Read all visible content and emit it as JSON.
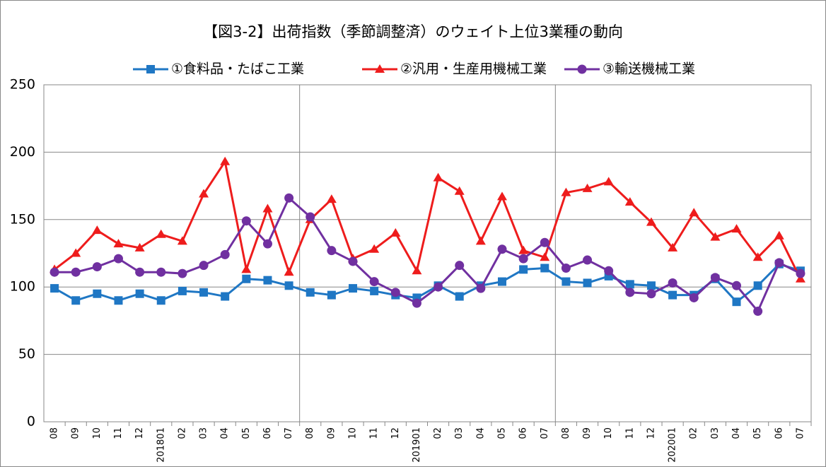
{
  "chart_data": {
    "type": "line",
    "title": "【図3-2】出荷指数（季節調整済）のウェイト上位3業種の動向",
    "categories": [
      "08",
      "09",
      "10",
      "11",
      "12",
      "201801",
      "02",
      "03",
      "04",
      "05",
      "06",
      "07",
      "08",
      "09",
      "10",
      "11",
      "12",
      "201901",
      "02",
      "03",
      "04",
      "05",
      "06",
      "07",
      "08",
      "09",
      "10",
      "11",
      "12",
      "202001",
      "02",
      "03",
      "04",
      "05",
      "06",
      "07"
    ],
    "series": [
      {
        "name": "①食料品・たばこ工業",
        "color": "#1f77c4",
        "marker": "square",
        "values": [
          99,
          90,
          95,
          90,
          95,
          90,
          97,
          96,
          93,
          106,
          105,
          101,
          96,
          94,
          99,
          97,
          94,
          92,
          101,
          93,
          101,
          104,
          113,
          114,
          104,
          103,
          108,
          102,
          101,
          94,
          94,
          106,
          89,
          101,
          117,
          112
        ]
      },
      {
        "name": "②汎用・生産用機械工業",
        "color": "#ee1c1c",
        "marker": "triangle",
        "values": [
          113,
          125,
          142,
          132,
          129,
          139,
          134,
          169,
          193,
          113,
          158,
          111,
          150,
          165,
          121,
          128,
          140,
          112,
          181,
          171,
          134,
          167,
          127,
          122,
          170,
          173,
          178,
          163,
          148,
          129,
          155,
          137,
          143,
          122,
          138,
          106
        ]
      },
      {
        "name": "③輸送機械工業",
        "color": "#7030a0",
        "marker": "circle",
        "values": [
          111,
          111,
          115,
          121,
          111,
          111,
          110,
          116,
          124,
          149,
          132,
          166,
          152,
          127,
          119,
          104,
          96,
          88,
          100,
          116,
          99,
          128,
          121,
          133,
          114,
          120,
          112,
          96,
          95,
          103,
          92,
          107,
          101,
          82,
          118,
          110
        ]
      }
    ],
    "ylim": [
      0,
      250
    ],
    "yticks": [
      0,
      50,
      100,
      150,
      200,
      250
    ],
    "grid": true
  }
}
